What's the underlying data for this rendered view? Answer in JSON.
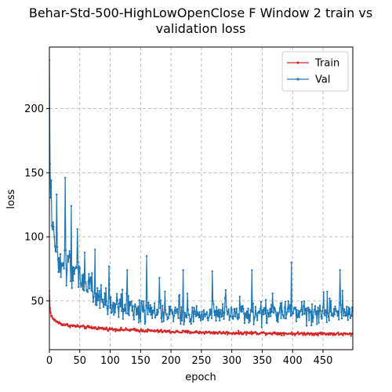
{
  "chart_data": {
    "type": "line",
    "title_lines": [
      "Behar-Std-500-HighLowOpenClose F Window 2 train vs",
      "validation loss"
    ],
    "xlabel": "epoch",
    "ylabel": "loss",
    "xlim": [
      0,
      499
    ],
    "ylim": [
      12,
      248
    ],
    "x_ticks": [
      0,
      50,
      100,
      150,
      200,
      250,
      300,
      350,
      400,
      450
    ],
    "y_ticks": [
      50,
      100,
      150,
      200
    ],
    "grid": true,
    "grid_style": "dashed",
    "legend_position": "top-right",
    "series": [
      {
        "name": "Train",
        "color": "#d62728",
        "x": [
          0,
          1,
          2,
          3,
          4,
          5,
          6,
          8,
          10,
          12,
          15,
          20,
          25,
          30,
          40,
          50,
          60,
          75,
          100,
          125,
          150,
          175,
          200,
          250,
          300,
          350,
          400,
          450,
          499
        ],
        "y": [
          58,
          44,
          41,
          39,
          38,
          37,
          36,
          35,
          34.5,
          34,
          33,
          32,
          31.5,
          31,
          30.5,
          30,
          29.5,
          29,
          28,
          27.5,
          27,
          26.5,
          26,
          25.5,
          25,
          25,
          24.5,
          24.5,
          24
        ],
        "noise": 1.2
      },
      {
        "name": "Val",
        "color": "#1f77b4",
        "x": [
          0,
          1,
          2,
          3,
          5,
          8,
          10,
          15,
          20,
          25,
          30,
          40,
          50,
          60,
          75,
          90,
          100,
          125,
          150,
          175,
          200,
          250,
          300,
          350,
          400,
          450,
          499
        ],
        "y": [
          238,
          150,
          125,
          110,
          100,
          95,
          90,
          85,
          80,
          78,
          76,
          72,
          68,
          62,
          55,
          50,
          45,
          44,
          42,
          41,
          40,
          40,
          40,
          40,
          41,
          41,
          40
        ],
        "noise": 12,
        "spikes": [
          {
            "x": 1,
            "y": 157
          },
          {
            "x": 3,
            "y": 144
          },
          {
            "x": 12,
            "y": 133
          },
          {
            "x": 26,
            "y": 146
          },
          {
            "x": 36,
            "y": 124
          },
          {
            "x": 46,
            "y": 106
          },
          {
            "x": 75,
            "y": 90
          },
          {
            "x": 98,
            "y": 77
          },
          {
            "x": 128,
            "y": 74
          },
          {
            "x": 160,
            "y": 85
          },
          {
            "x": 181,
            "y": 68
          },
          {
            "x": 220,
            "y": 74
          },
          {
            "x": 268,
            "y": 73
          },
          {
            "x": 333,
            "y": 74
          },
          {
            "x": 398,
            "y": 80
          },
          {
            "x": 478,
            "y": 74
          }
        ]
      }
    ]
  }
}
